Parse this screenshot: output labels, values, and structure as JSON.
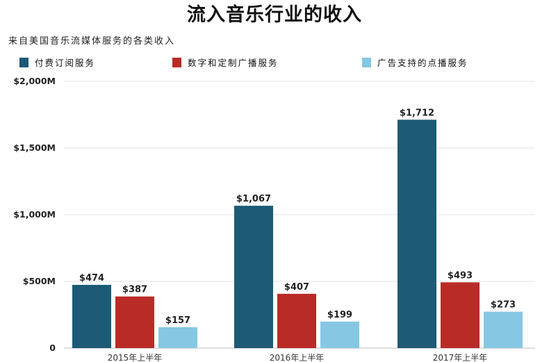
{
  "chart_data": {
    "type": "bar",
    "title": "流入音乐行业的收入",
    "subtitle": "来自美国音乐流媒体服务的各类收入",
    "categories": [
      "2015年上半年",
      "2016年上半年",
      "2017年上半年"
    ],
    "series": [
      {
        "name": "付费订阅服务",
        "color": "#1d5a75",
        "values": [
          474,
          1067,
          1712
        ],
        "labels": [
          "$474",
          "$1,067",
          "$1,712"
        ]
      },
      {
        "name": "数字和定制广播服务",
        "color": "#b92b27",
        "values": [
          387,
          407,
          493
        ],
        "labels": [
          "$387",
          "$407",
          "$493"
        ]
      },
      {
        "name": "广告支持的点播服务",
        "color": "#86c7e4",
        "values": [
          157,
          199,
          273
        ],
        "labels": [
          "$157",
          "$199",
          "$273"
        ]
      }
    ],
    "yticks": [
      {
        "value": 0,
        "label": "0"
      },
      {
        "value": 500,
        "label": "$500M"
      },
      {
        "value": 1000,
        "label": "$1,000M"
      },
      {
        "value": 1500,
        "label": "$1,500M"
      },
      {
        "value": 2000,
        "label": "$2,000M"
      }
    ],
    "ylim": [
      0,
      2000
    ],
    "grid": true,
    "legend_position": "top-left"
  }
}
